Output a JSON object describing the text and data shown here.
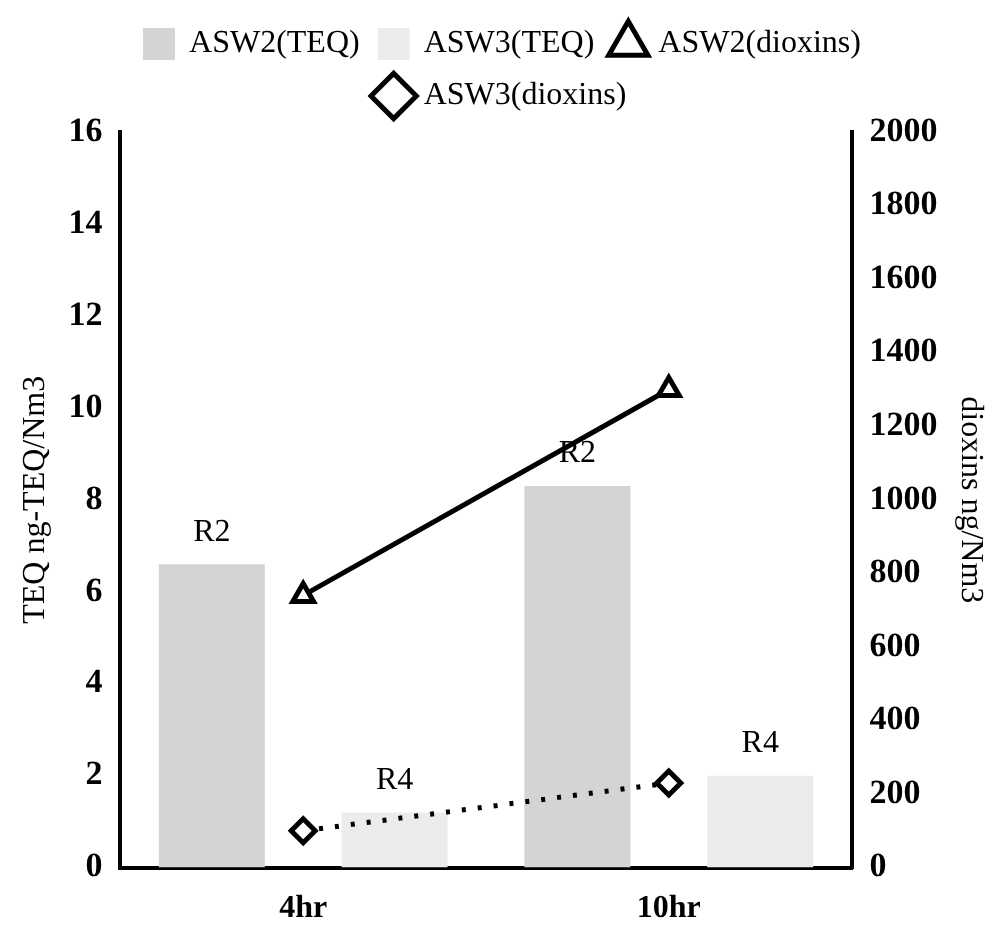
{
  "chart_data": {
    "type": "bar",
    "categories": [
      "4hr",
      "10hr"
    ],
    "ylabel": "TEQ ng-TEQ/Nm3",
    "y2label": "dioxins ng/Nm3",
    "ylim": [
      0,
      16
    ],
    "yticks": [
      0,
      2,
      4,
      6,
      8,
      10,
      12,
      14,
      16
    ],
    "y2lim": [
      0,
      2000
    ],
    "y2ticks": [
      0,
      200,
      400,
      600,
      800,
      1000,
      1200,
      1400,
      1600,
      1800,
      2000
    ],
    "grid": false,
    "legend": "top",
    "series": [
      {
        "name": "ASW2(TEQ)",
        "color": "#d4d4d4",
        "values": [
          6.6,
          8.3
        ],
        "value_labels": [
          "R2",
          "R2"
        ]
      },
      {
        "name": "ASW3(TEQ)",
        "color": "#ececec",
        "values": [
          1.2,
          2.0
        ],
        "value_labels": [
          "R4",
          "R4"
        ]
      },
      {
        "name": "ASW2(dioxins)",
        "type": "line",
        "axis": "y2",
        "color": "#000000",
        "marker": "triangle",
        "line_style": "solid",
        "values": [
          740,
          1300
        ]
      },
      {
        "name": "ASW3(dioxins)",
        "type": "line",
        "axis": "y2",
        "color": "#000000",
        "marker": "diamond",
        "line_style": "dotted",
        "values": [
          100,
          230
        ]
      }
    ]
  }
}
